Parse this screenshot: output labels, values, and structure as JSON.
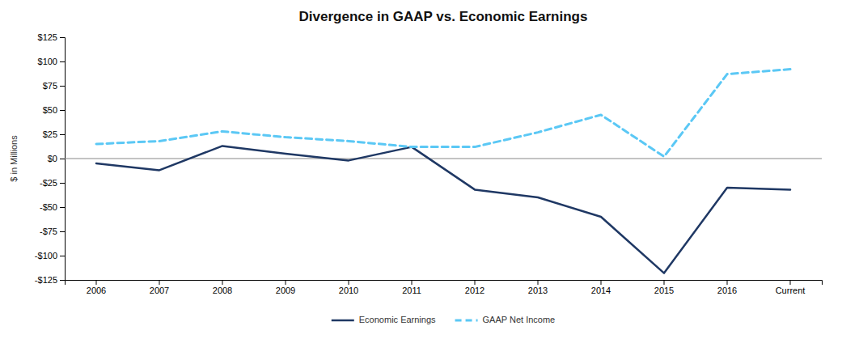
{
  "chart_data": {
    "type": "line",
    "title": "Divergence in GAAP vs. Economic Earnings",
    "y_label": "$ in Millions",
    "categories": [
      "2006",
      "2007",
      "2008",
      "2009",
      "2010",
      "2011",
      "2012",
      "2013",
      "2014",
      "2015",
      "2016",
      "Current"
    ],
    "series": [
      {
        "name": "Economic Earnings",
        "color": "#1F3864",
        "line_style": "solid",
        "values": [
          -5,
          -12,
          13,
          5,
          -2,
          12,
          -32,
          -40,
          -60,
          -118,
          -30,
          -32
        ]
      },
      {
        "name": "GAAP Net Income",
        "color": "#5BC8F5",
        "line_style": "dashed",
        "values": [
          15,
          18,
          28,
          22,
          18,
          12,
          12,
          27,
          45,
          2,
          87,
          92
        ]
      }
    ],
    "ylim": [
      -125,
      125
    ],
    "yticks": [
      {
        "value": -125,
        "label": "-$125"
      },
      {
        "value": -100,
        "label": "-$100"
      },
      {
        "value": -75,
        "label": "-$75"
      },
      {
        "value": -50,
        "label": "-$50"
      },
      {
        "value": -25,
        "label": "-$25"
      },
      {
        "value": 0,
        "label": "$0"
      },
      {
        "value": 25,
        "label": "$25"
      },
      {
        "value": 50,
        "label": "$50"
      },
      {
        "value": 75,
        "label": "$75"
      },
      {
        "value": 100,
        "label": "$100"
      },
      {
        "value": 125,
        "label": "$125"
      }
    ],
    "grid": false,
    "legend": "bottom"
  }
}
